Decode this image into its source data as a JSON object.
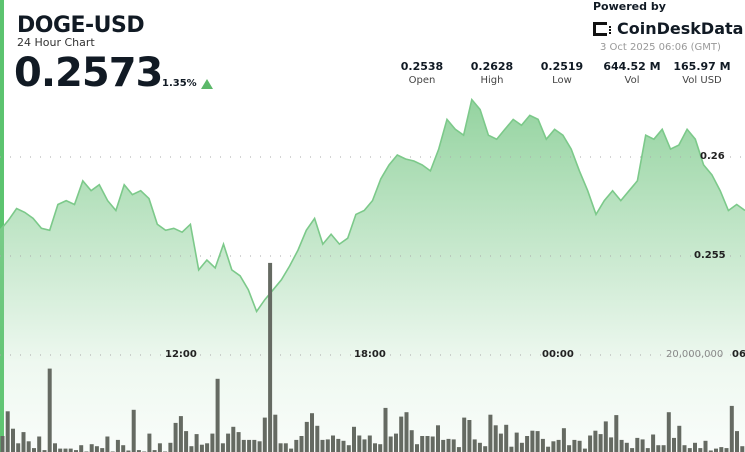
{
  "header": {
    "symbol": "DOGE-USD",
    "subtitle": "24 Hour Chart",
    "price": "0.2573",
    "change": "1.35%",
    "change_direction": "up",
    "powered_by": "Powered by",
    "brand": "CoinDeskData",
    "timestamp": "3 Oct 2025 06:06 (GMT)"
  },
  "stats": [
    {
      "value": "0.2538",
      "label": "Open"
    },
    {
      "value": "0.2628",
      "label": "High"
    },
    {
      "value": "0.2519",
      "label": "Low"
    },
    {
      "value": "644.52 M",
      "label": "Vol"
    },
    {
      "value": "165.97 M",
      "label": "Vol USD"
    }
  ],
  "colors": {
    "accent": "#5cc46f",
    "line": "#7cc98a",
    "fill": "#8fd19b",
    "volume_bar": "#656a62",
    "up_arrow": "#5cb86a"
  },
  "chart_data": {
    "type": "area",
    "grid": true,
    "price_ticks": [
      {
        "value": 0.26,
        "label": "0.26"
      },
      {
        "value": 0.255,
        "label": "0.255"
      }
    ],
    "volume_ticks": [
      {
        "value": 20000000,
        "label": "20,000,000"
      }
    ],
    "time_ticks": [
      {
        "label": "12:00"
      },
      {
        "label": "18:00"
      },
      {
        "label": "00:00"
      },
      {
        "label": "06"
      }
    ],
    "price": [
      0.2563,
      0.2568,
      0.2574,
      0.2572,
      0.2569,
      0.2564,
      0.2563,
      0.2576,
      0.2578,
      0.2576,
      0.2588,
      0.2583,
      0.2586,
      0.2578,
      0.2573,
      0.2586,
      0.2581,
      0.2583,
      0.2579,
      0.2566,
      0.2563,
      0.2564,
      0.2562,
      0.2566,
      0.2543,
      0.2548,
      0.2544,
      0.2556,
      0.2543,
      0.254,
      0.2533,
      0.2522,
      0.2528,
      0.2533,
      0.2538,
      0.2545,
      0.2553,
      0.2563,
      0.2569,
      0.2556,
      0.2561,
      0.2556,
      0.2559,
      0.2571,
      0.2573,
      0.2578,
      0.2589,
      0.2596,
      0.2601,
      0.2599,
      0.2598,
      0.2596,
      0.2593,
      0.2604,
      0.2619,
      0.2614,
      0.2611,
      0.2629,
      0.2624,
      0.2611,
      0.2609,
      0.2614,
      0.2619,
      0.2616,
      0.2621,
      0.2619,
      0.2609,
      0.2614,
      0.2611,
      0.2604,
      0.2593,
      0.2583,
      0.2571,
      0.2578,
      0.2583,
      0.2578,
      0.2583,
      0.2588,
      0.2611,
      0.2609,
      0.2614,
      0.2604,
      0.2606,
      0.2614,
      0.2609,
      0.2596,
      0.2591,
      0.2583,
      0.2573,
      0.2576,
      0.2573
    ],
    "volume": [
      3300000.0,
      8400000.0,
      4800000.0,
      1800000.0,
      4100000.0,
      2200000.0,
      800000.0,
      3200000.0,
      400000.0,
      17200000.0,
      1800000.0,
      700000.0,
      700000.0,
      700000.0,
      400000.0,
      1400000.0,
      100000.0,
      1600000.0,
      1200000.0,
      800000.0,
      3200000.0,
      100000.0,
      2500000.0,
      1400000.0,
      300000.0,
      8700000.0,
      400000.0,
      100000.0,
      3800000.0,
      400000.0,
      1800000.0,
      100000.0,
      1900000.0,
      6000000.0,
      7400000.0,
      4300000.0,
      1200000.0,
      3700000.0,
      1500000.0,
      1800000.0,
      3800000.0,
      15100000.0,
      1800000.0,
      3800000.0,
      5200000.0,
      4100000.0,
      2500000.0,
      2500000.0,
      2500000.0,
      2200000.0,
      7100000.0,
      39000000.0,
      7700000.0,
      1800000.0,
      1800000.0,
      700000.0,
      2500000.0,
      3300000.0,
      6200000.0,
      8000000.0,
      5400000.0,
      2500000.0,
      2600000.0,
      3400000.0,
      2700000.0,
      2300000.0,
      1400000.0,
      5200000.0,
      3400000.0,
      2600000.0,
      3400000.0,
      1800000.0,
      1600000.0,
      9100000.0,
      3200000.0,
      3800000.0,
      7300000.0,
      8200000.0,
      4500000.0,
      1600000.0,
      3300000.0,
      3300000.0,
      3200000.0,
      5500000.0,
      2500000.0,
      2700000.0,
      2600000.0,
      1000000.0,
      7100000.0,
      6600000.0,
      2600000.0,
      1900000.0,
      1200000.0,
      7700000.0,
      5500000.0,
      3800000.0,
      5600000.0,
      1100000.0,
      4000000.0,
      1900000.0,
      3300000.0,
      4400000.0,
      4300000.0,
      2700000.0,
      1100000.0,
      2200000.0,
      2500000.0,
      4900000.0,
      1400000.0,
      2500000.0,
      2300000.0,
      700000.0,
      3400000.0,
      4400000.0,
      3700000.0,
      6300000.0,
      3000000.0,
      7600000.0,
      2500000.0,
      1900000.0,
      800000.0,
      2900000.0,
      2600000.0,
      800000.0,
      3600000.0,
      1400000.0,
      1400000.0,
      8200000.0,
      2900000.0,
      5400000.0,
      1400000.0,
      800000.0,
      1900000.0,
      800000.0,
      2300000.0,
      300000.0,
      700000.0,
      1000000.0,
      800000.0,
      9500000.0,
      4300000.0,
      1200000.0
    ]
  }
}
